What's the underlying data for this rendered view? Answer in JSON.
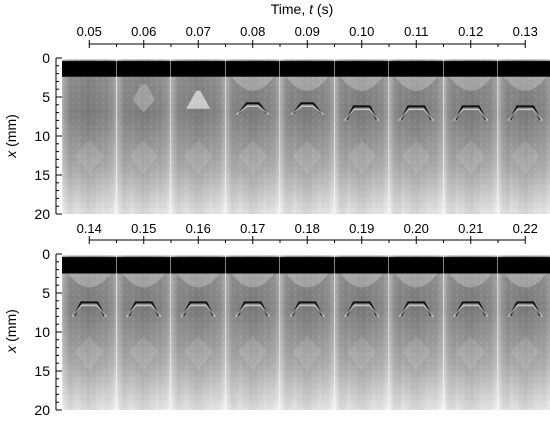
{
  "figure": {
    "top_axis_title": "Time, ",
    "top_axis_title_var": "t",
    "top_axis_title_unit": " (s)",
    "y_axis_label_var": "x",
    "y_axis_label_unit": " (mm)",
    "y_ticks": [
      "0",
      "5",
      "10",
      "15",
      "20"
    ],
    "y_range_mm": [
      0,
      20
    ],
    "panels": [
      {
        "name": "top",
        "times": [
          "0.05",
          "0.06",
          "0.07",
          "0.08",
          "0.09",
          "0.10",
          "0.11",
          "0.12",
          "0.13"
        ]
      },
      {
        "name": "bottom",
        "times": [
          "0.14",
          "0.15",
          "0.16",
          "0.17",
          "0.18",
          "0.19",
          "0.20",
          "0.21",
          "0.22"
        ]
      }
    ],
    "colors": {
      "background": "#ffffff",
      "frame_dark": "#000000",
      "frame_light": "#e4e4e4",
      "frame_mid": "#8c8c8c",
      "interface_line": "#111111"
    }
  }
}
